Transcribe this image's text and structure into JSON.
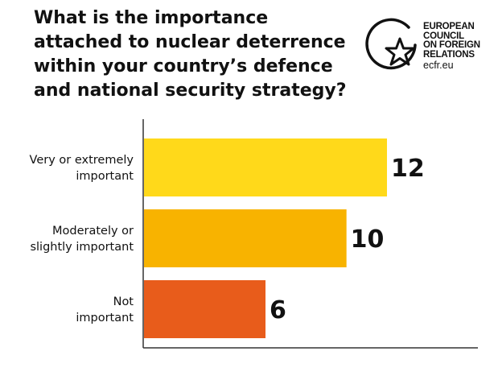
{
  "header": {
    "title": "What is the importance attached to nuclear deterrence within your country’s defence and national security strategy?"
  },
  "logo": {
    "lines": [
      "EUROPEAN",
      "COUNCIL",
      "ON FOREIGN",
      "RELATIONS"
    ],
    "url": "ecfr.eu"
  },
  "colors": {
    "bar_1": "#FFD91A",
    "bar_2": "#F8B300",
    "bar_3": "#E85C1B",
    "axis": "#333333"
  },
  "chart_data": {
    "type": "bar",
    "orientation": "horizontal",
    "categories": [
      [
        "Very or extremely",
        "important"
      ],
      [
        "Moderately or",
        "slightly important"
      ],
      [
        "Not",
        "important"
      ]
    ],
    "values": [
      12,
      10,
      6
    ],
    "value_labels": [
      "12",
      "10",
      "6"
    ],
    "title": "What is the importance attached to nuclear deterrence within your country’s defence and national security strategy?",
    "xlabel": "",
    "ylabel": "",
    "xlim": [
      0,
      12
    ],
    "grid": false,
    "legend": "none"
  }
}
